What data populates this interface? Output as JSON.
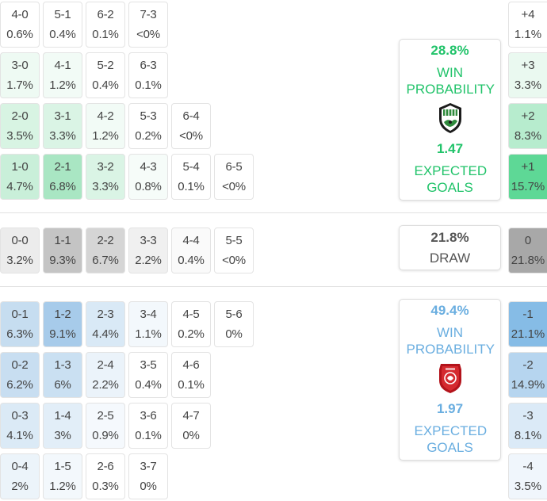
{
  "home_win_scores": [
    {
      "score": "4-0",
      "pct": "0.6%",
      "bg": "#ffffff"
    },
    {
      "score": "5-1",
      "pct": "0.4%",
      "bg": "#ffffff"
    },
    {
      "score": "6-2",
      "pct": "0.1%",
      "bg": "#ffffff"
    },
    {
      "score": "7-3",
      "pct": "<0%",
      "bg": "#ffffff"
    },
    {
      "score": "3-0",
      "pct": "1.7%",
      "bg": "#eefaf3"
    },
    {
      "score": "4-1",
      "pct": "1.2%",
      "bg": "#f2fbf6"
    },
    {
      "score": "5-2",
      "pct": "0.4%",
      "bg": "#ffffff"
    },
    {
      "score": "6-3",
      "pct": "0.1%",
      "bg": "#ffffff"
    },
    {
      "score": "2-0",
      "pct": "3.5%",
      "bg": "#d8f4e3"
    },
    {
      "score": "3-1",
      "pct": "3.3%",
      "bg": "#daf4e5"
    },
    {
      "score": "4-2",
      "pct": "1.2%",
      "bg": "#f2fbf6"
    },
    {
      "score": "5-3",
      "pct": "0.2%",
      "bg": "#ffffff"
    },
    {
      "score": "6-4",
      "pct": "<0%",
      "bg": "#ffffff"
    },
    {
      "score": "1-0",
      "pct": "4.7%",
      "bg": "#c9efd9"
    },
    {
      "score": "2-1",
      "pct": "6.8%",
      "bg": "#a9e6c3"
    },
    {
      "score": "3-2",
      "pct": "3.3%",
      "bg": "#daf4e5"
    },
    {
      "score": "4-3",
      "pct": "0.8%",
      "bg": "#f6fcf9"
    },
    {
      "score": "5-4",
      "pct": "0.1%",
      "bg": "#ffffff"
    },
    {
      "score": "6-5",
      "pct": "<0%",
      "bg": "#ffffff"
    }
  ],
  "draw_scores": [
    {
      "score": "0-0",
      "pct": "3.2%",
      "bg": "#ececec"
    },
    {
      "score": "1-1",
      "pct": "9.3%",
      "bg": "#c4c4c4"
    },
    {
      "score": "2-2",
      "pct": "6.7%",
      "bg": "#d5d5d5"
    },
    {
      "score": "3-3",
      "pct": "2.2%",
      "bg": "#f0f0f0"
    },
    {
      "score": "4-4",
      "pct": "0.4%",
      "bg": "#fafafa"
    },
    {
      "score": "5-5",
      "pct": "<0%",
      "bg": "#ffffff"
    }
  ],
  "away_win_scores": [
    {
      "score": "0-1",
      "pct": "6.3%",
      "bg": "#c6ddf0"
    },
    {
      "score": "1-2",
      "pct": "9.1%",
      "bg": "#a7cbea"
    },
    {
      "score": "2-3",
      "pct": "4.4%",
      "bg": "#d9e9f6"
    },
    {
      "score": "3-4",
      "pct": "1.1%",
      "bg": "#f3f8fc"
    },
    {
      "score": "4-5",
      "pct": "0.2%",
      "bg": "#ffffff"
    },
    {
      "score": "5-6",
      "pct": "0%",
      "bg": "#ffffff"
    },
    {
      "score": "0-2",
      "pct": "6.2%",
      "bg": "#c8def1"
    },
    {
      "score": "1-3",
      "pct": "6%",
      "bg": "#cae0f2"
    },
    {
      "score": "2-4",
      "pct": "2.2%",
      "bg": "#ebf3fa"
    },
    {
      "score": "3-5",
      "pct": "0.4%",
      "bg": "#ffffff"
    },
    {
      "score": "4-6",
      "pct": "0.1%",
      "bg": "#ffffff"
    },
    {
      "score": "0-3",
      "pct": "4.1%",
      "bg": "#dbeaf6"
    },
    {
      "score": "1-4",
      "pct": "3%",
      "bg": "#e2eef8"
    },
    {
      "score": "2-5",
      "pct": "0.9%",
      "bg": "#f5f9fd"
    },
    {
      "score": "3-6",
      "pct": "0.1%",
      "bg": "#ffffff"
    },
    {
      "score": "4-7",
      "pct": "0%",
      "bg": "#ffffff"
    },
    {
      "score": "0-4",
      "pct": "2%",
      "bg": "#ecf4fa"
    },
    {
      "score": "1-5",
      "pct": "1.2%",
      "bg": "#f3f8fc"
    },
    {
      "score": "2-6",
      "pct": "0.3%",
      "bg": "#ffffff"
    },
    {
      "score": "3-7",
      "pct": "0%",
      "bg": "#ffffff"
    }
  ],
  "home_card": {
    "win_pct": "28.8%",
    "win_label": "WIN PROBABILITY",
    "xg": "1.47",
    "xg_label": "EXPECTED GOALS",
    "color": "#21c36a",
    "badge_icon": "green-team-crest-icon"
  },
  "draw_card": {
    "pct": "21.8%",
    "label": "DRAW",
    "color": "#555555"
  },
  "away_card": {
    "win_pct": "49.4%",
    "win_label": "WIN PROBABILITY",
    "xg": "1.97",
    "xg_label": "EXPECTED GOALS",
    "color": "#6aaee0",
    "badge_icon": "red-team-crest-icon"
  },
  "margins": [
    {
      "label": "+4",
      "pct": "1.1%",
      "bg": "#ffffff"
    },
    {
      "label": "+3",
      "pct": "3.3%",
      "bg": "#eaf9f0"
    },
    {
      "label": "+2",
      "pct": "8.3%",
      "bg": "#b7ecce"
    },
    {
      "label": "+1",
      "pct": "15.7%",
      "bg": "#5ed896"
    },
    {
      "label": "0",
      "pct": "21.8%",
      "bg": "#a8a8a8"
    },
    {
      "label": "-1",
      "pct": "21.1%",
      "bg": "#86bce6"
    },
    {
      "label": "-2",
      "pct": "14.9%",
      "bg": "#b6d5ef"
    },
    {
      "label": "-3",
      "pct": "8.1%",
      "bg": "#dbeaf7"
    },
    {
      "label": "-4",
      "pct": "3.5%",
      "bg": "#f0f6fc"
    }
  ]
}
